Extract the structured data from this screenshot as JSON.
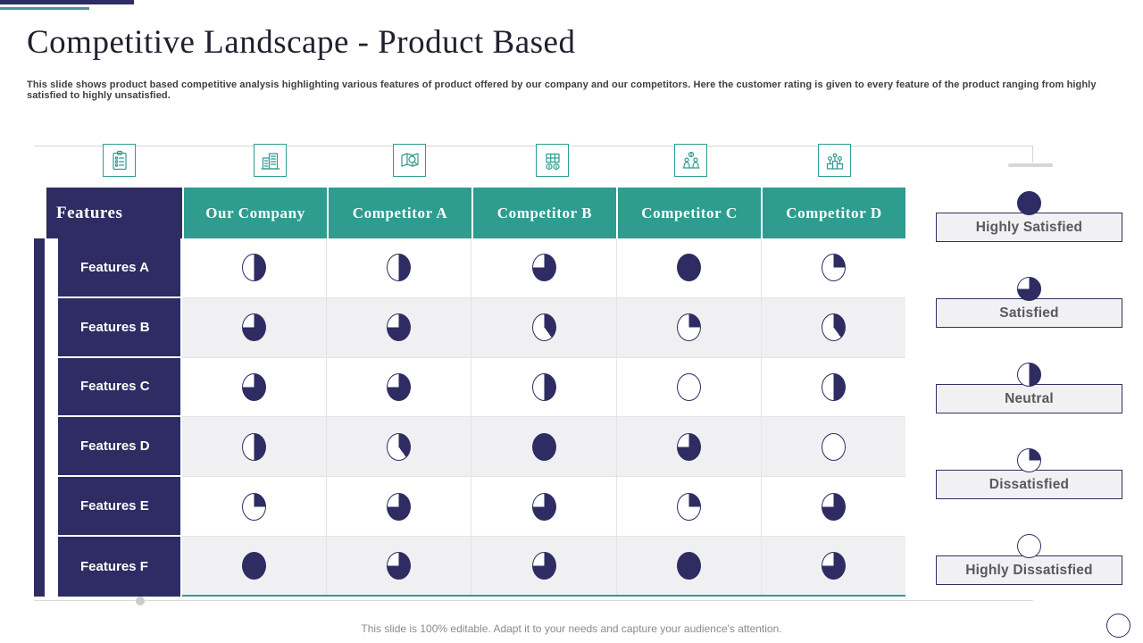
{
  "slide": {
    "title": "Competitive Landscape - Product Based",
    "subtitle": "This slide shows product based competitive analysis highlighting various features of product offered by our company and our competitors. Here the customer rating is given to every feature of the product ranging from highly satisfied to highly unsatisfied.",
    "footer": "This slide is 100% editable. Adapt it to your needs and capture your audience's attention."
  },
  "colors": {
    "navy": "#2e2c63",
    "teal": "#2f9c90",
    "accent_bar_teal": "#4c93a4",
    "row_alt": "#f0f0f2",
    "legend_box_bg": "#f1f1f3",
    "legend_text": "#58595b",
    "ball_fill": "#2e2c63"
  },
  "column_icons": [
    "checklist-icon",
    "company-building-icon",
    "market-map-search-icon",
    "finance-coins-icon",
    "deal-people-money-icon",
    "ranking-podium-icon"
  ],
  "table": {
    "features_header": "Features",
    "companies": [
      "Our Company",
      "Competitor A",
      "Competitor B",
      "Competitor C",
      "Competitor D"
    ],
    "rows": [
      {
        "label": "Features A",
        "ratings_percent": [
          50,
          50,
          75,
          100,
          25
        ]
      },
      {
        "label": "Features B",
        "ratings_percent": [
          75,
          75,
          40,
          25,
          40
        ]
      },
      {
        "label": "Features C",
        "ratings_percent": [
          75,
          75,
          50,
          0,
          50
        ]
      },
      {
        "label": "Features D",
        "ratings_percent": [
          50,
          40,
          100,
          75,
          0
        ]
      },
      {
        "label": "Features E",
        "ratings_percent": [
          25,
          75,
          75,
          25,
          75
        ]
      },
      {
        "label": "Features F",
        "ratings_percent": [
          100,
          75,
          75,
          100,
          75
        ]
      }
    ]
  },
  "legend": [
    {
      "label": "Highly Satisfied",
      "percent": 100
    },
    {
      "label": "Satisfied",
      "percent": 75
    },
    {
      "label": "Neutral",
      "percent": 50
    },
    {
      "label": "Dissatisfied",
      "percent": 25
    },
    {
      "label": "Highly Dissatisfied",
      "percent": 0
    }
  ]
}
